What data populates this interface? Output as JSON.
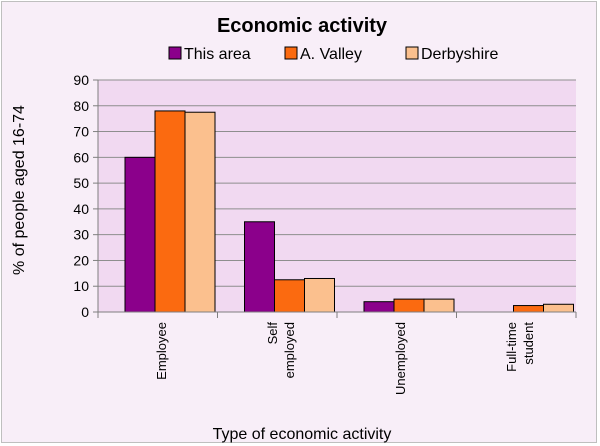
{
  "chart_data": {
    "type": "bar",
    "title": "Economic activity",
    "xlabel": "Type of economic activity",
    "ylabel": "% of people aged 16-74",
    "ylim": [
      0,
      90
    ],
    "y_ticks": [
      0,
      10,
      20,
      30,
      40,
      50,
      60,
      70,
      80,
      90
    ],
    "grid": true,
    "legend_position": "top",
    "categories": [
      [
        "Employee"
      ],
      [
        "Self",
        "employed"
      ],
      [
        "Unemployed"
      ],
      [
        "Full-time",
        "student"
      ]
    ],
    "series": [
      {
        "name": "This area",
        "color": "#8b008b",
        "values": [
          60,
          35,
          4,
          0
        ]
      },
      {
        "name": "A. Valley",
        "color": "#fb6a10",
        "values": [
          78,
          12.5,
          5,
          2.5
        ]
      },
      {
        "name": "Derbyshire",
        "color": "#fbc08e",
        "values": [
          77.5,
          13,
          5,
          3
        ]
      }
    ],
    "plot_background": "#f1d9f1",
    "gridline_color": "#8e8e8e"
  }
}
